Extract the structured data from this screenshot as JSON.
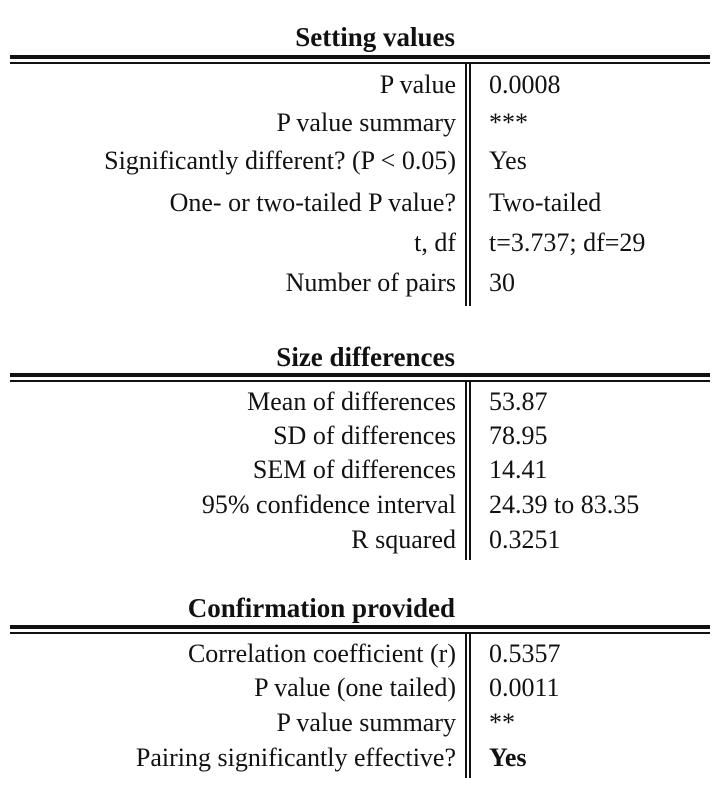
{
  "sections": [
    {
      "title": "Setting values",
      "rows": [
        {
          "label": "P value",
          "value": "0.0008"
        },
        {
          "label": "P value summary",
          "value": "***"
        },
        {
          "label": "Significantly different? (P < 0.05)",
          "value": "Yes"
        },
        {
          "label": "One- or two-tailed P value?",
          "value": "Two-tailed"
        },
        {
          "label": "t, df",
          "value": "t=3.737; df=29"
        },
        {
          "label": "Number of pairs",
          "value": "30"
        }
      ]
    },
    {
      "title": "Size differences",
      "rows": [
        {
          "label": "Mean of differences",
          "value": "53.87"
        },
        {
          "label": "SD of differences",
          "value": "78.95"
        },
        {
          "label": "SEM of differences",
          "value": "14.41"
        },
        {
          "label": "95% confidence interval",
          "value": "24.39 to 83.35"
        },
        {
          "label": "R squared",
          "value": "0.3251"
        }
      ]
    },
    {
      "title": "Confirmation provided",
      "rows": [
        {
          "label": "Correlation coefficient (r)",
          "value": "0.5357"
        },
        {
          "label": "P value (one tailed)",
          "value": "0.0011"
        },
        {
          "label": "P value summary",
          "value": "**"
        },
        {
          "label": "Pairing significantly effective?",
          "value": "Yes"
        }
      ]
    }
  ]
}
